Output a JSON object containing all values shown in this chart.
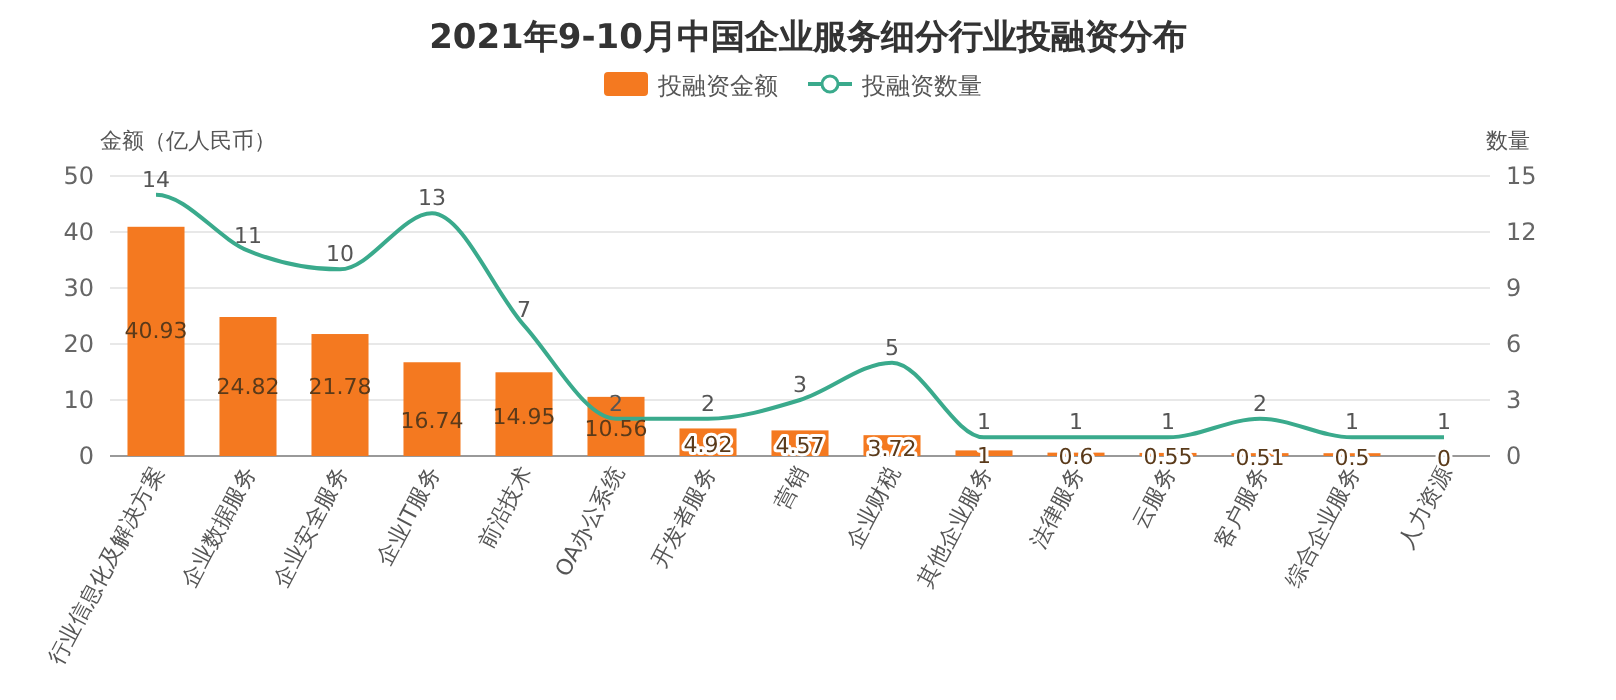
{
  "chart_data": {
    "type": "bar",
    "title": "2021年9-10月中国企业服务细分行业投融资分布",
    "categories": [
      "行业信息化及解决方案",
      "企业数据服务",
      "企业安全服务",
      "企业IT服务",
      "前沿技术",
      "OA办公系统",
      "开发者服务",
      "营销",
      "企业财税",
      "其他企业服务",
      "法律服务",
      "云服务",
      "客户服务",
      "综合企业服务",
      "人力资源"
    ],
    "series": [
      {
        "name": "投融资金额",
        "color": "#f47920",
        "values": [
          40.93,
          24.82,
          21.78,
          16.74,
          14.95,
          10.56,
          4.92,
          4.57,
          3.72,
          1,
          0.6,
          0.55,
          0.51,
          0.5,
          0
        ]
      },
      {
        "name": "投融资数量",
        "type": "line",
        "axis": "y2",
        "color": "#3aaa8c",
        "values": [
          14,
          11,
          10,
          13,
          7,
          2,
          2,
          3,
          5,
          1,
          1,
          1,
          2,
          1,
          1
        ]
      }
    ],
    "ylabel": "金额（亿人民币）",
    "y2label": "数量",
    "ylim": [
      0,
      50
    ],
    "yticks": [
      0,
      10,
      20,
      30,
      40,
      50
    ],
    "y2lim": [
      0,
      15
    ],
    "y2ticks": [
      0,
      3,
      6,
      9,
      12,
      15
    ],
    "grid": "y",
    "legend": "top",
    "data_labels": true
  }
}
